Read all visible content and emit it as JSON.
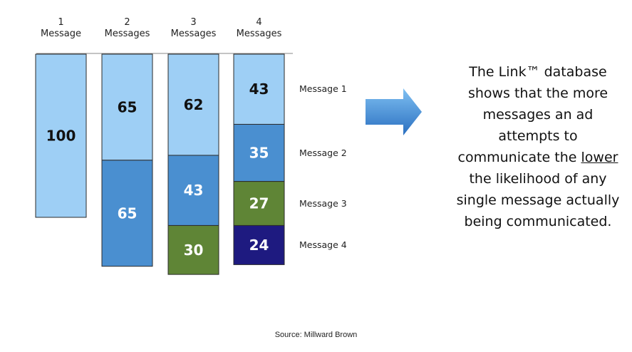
{
  "chart_data": {
    "type": "bar",
    "stacked": true,
    "categories": [
      {
        "number": "1",
        "label": "Message"
      },
      {
        "number": "2",
        "label": "Messages"
      },
      {
        "number": "3",
        "label": "Messages"
      },
      {
        "number": "4",
        "label": "Messages"
      }
    ],
    "series": [
      {
        "name": "Message 1",
        "values": [
          100,
          65,
          62,
          43
        ],
        "color": "#9ecff5"
      },
      {
        "name": "Message 2",
        "values": [
          null,
          65,
          43,
          35
        ],
        "color": "#4a8fd0"
      },
      {
        "name": "Message 3",
        "values": [
          null,
          null,
          30,
          27
        ],
        "color": "#5f8536"
      },
      {
        "name": "Message 4",
        "values": [
          null,
          null,
          null,
          24
        ],
        "color": "#1e1a80"
      }
    ],
    "legend_placement": "right"
  },
  "annotation": {
    "before": "The Link™ database shows that the more messages an ad attempts to communicate the ",
    "underlined": "lower",
    "after": " the likelihood of any single message actually being communicated."
  },
  "source": "Source: Millward Brown",
  "colors": {
    "arrow_light": "#6fb4ee",
    "arrow_dark": "#2a6fc0",
    "bar_border": "#2b2b2b"
  }
}
